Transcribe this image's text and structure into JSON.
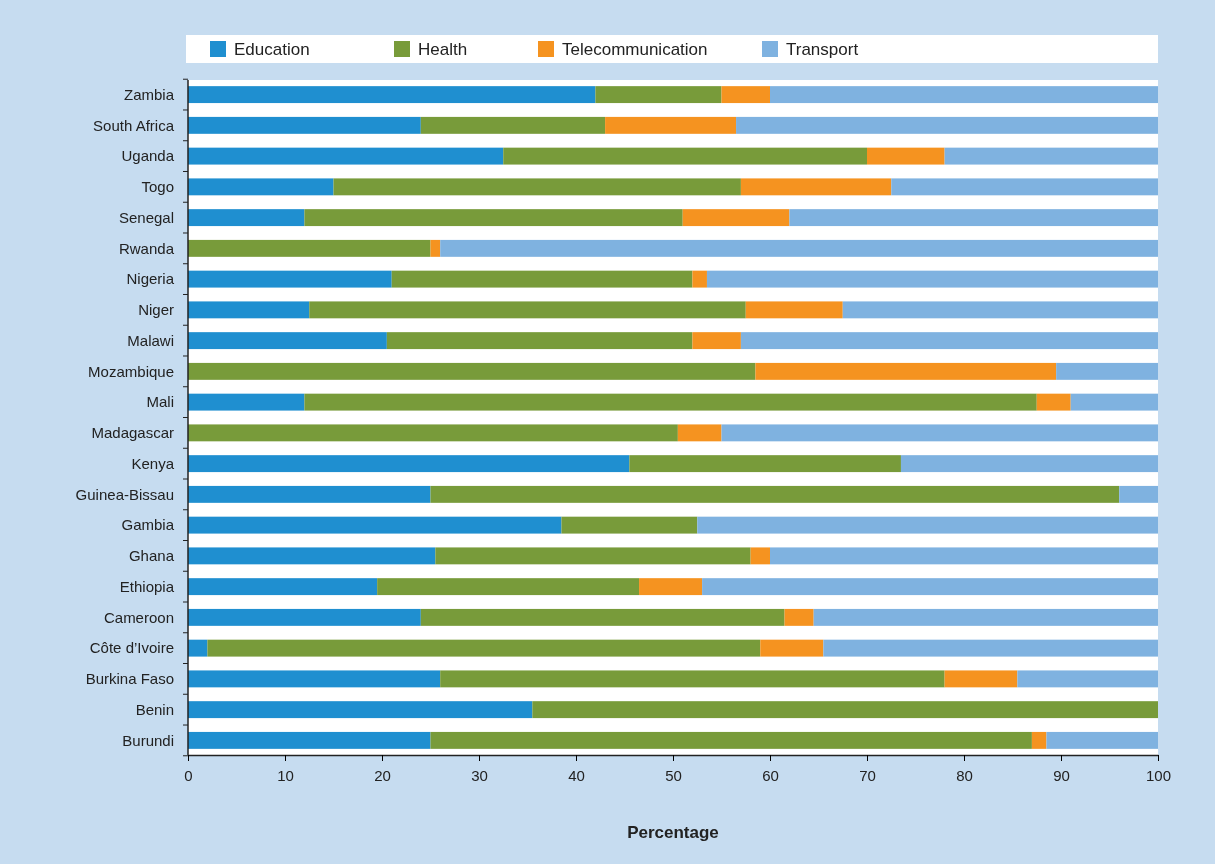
{
  "chart_data": {
    "type": "bar",
    "orientation": "horizontal",
    "stacked": true,
    "xlabel": "Percentage",
    "legend": "top",
    "grid": false,
    "categories": [
      "Zambia",
      "South Africa",
      "Uganda",
      "Togo",
      "Senegal",
      "Rwanda",
      "Nigeria",
      "Niger",
      "Malawi",
      "Mozambique",
      "Mali",
      "Madagascar",
      "Kenya",
      "Guinea-Bissau",
      "Gambia",
      "Ghana",
      "Ethiopia",
      "Cameroon",
      "Côte d’Ivoire",
      "Burkina Faso",
      "Benin",
      "Burundi"
    ],
    "xlim": [
      0,
      100
    ],
    "xticks": [
      0,
      10,
      20,
      30,
      40,
      50,
      60,
      70,
      80,
      90,
      100
    ],
    "series": [
      {
        "name": "Education",
        "color": "#1f8fd0",
        "values": [
          42,
          24,
          32.5,
          15,
          12,
          0,
          21,
          12.5,
          20.5,
          0,
          12,
          0,
          45.5,
          25,
          38.5,
          25.5,
          19.5,
          24,
          2,
          26,
          35.5,
          25
        ]
      },
      {
        "name": "Health",
        "color": "#789b3a",
        "values": [
          13,
          19,
          37.5,
          42,
          39,
          25,
          31,
          45,
          31.5,
          58.5,
          75.5,
          50.5,
          28,
          71,
          14,
          32.5,
          27,
          37.5,
          57,
          52,
          64.5,
          62
        ]
      },
      {
        "name": "Telecommunication",
        "color": "#f59320",
        "values": [
          5,
          13.5,
          8,
          15.5,
          11,
          1,
          1.5,
          10,
          5,
          31,
          3.5,
          4.5,
          0,
          0,
          0,
          2,
          6.5,
          3,
          6.5,
          7.5,
          0,
          1.5
        ]
      },
      {
        "name": "Transport",
        "color": "#7fb2e0",
        "values": [
          40,
          43.5,
          22,
          27.5,
          38,
          74,
          46.5,
          32.5,
          43,
          10.5,
          9,
          45,
          26.5,
          4,
          47.5,
          40,
          47,
          35.5,
          34.5,
          14.5,
          0,
          11.5
        ]
      }
    ]
  }
}
